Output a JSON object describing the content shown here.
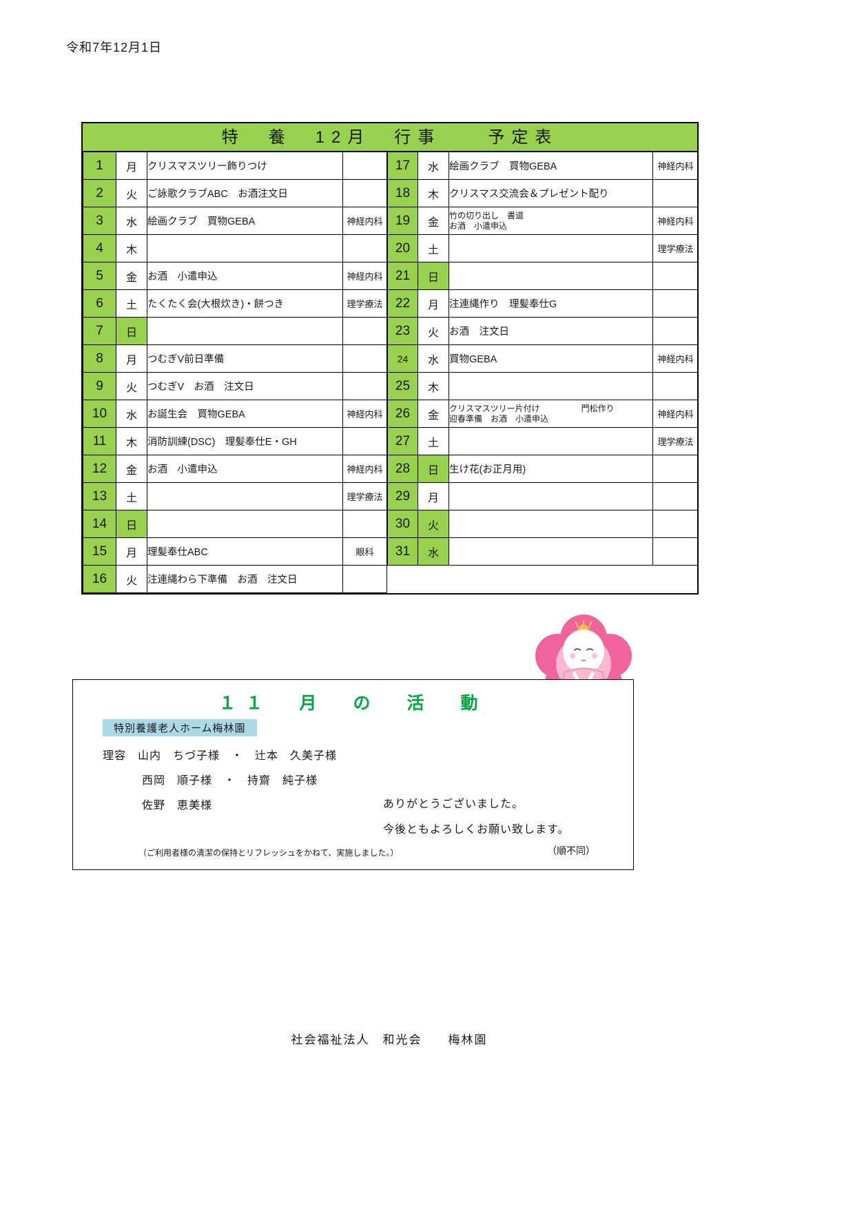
{
  "page": {
    "date_line": "令和7年12月1日",
    "footer": "社会福祉法人　和光会　　梅林園"
  },
  "schedule": {
    "title": "特　養　12月　行事　　予定表",
    "header_bg": "#98d050",
    "note_values": [
      "神経内科",
      "理学療法",
      "眼科"
    ],
    "left_days": [
      {
        "num": "1",
        "day": "月",
        "holiday": false,
        "events": [
          "クリスマスツリー飾りつけ"
        ],
        "note": ""
      },
      {
        "num": "2",
        "day": "火",
        "holiday": false,
        "events": [
          "ご詠歌クラブABC　お酒注文日"
        ],
        "note": ""
      },
      {
        "num": "3",
        "day": "水",
        "holiday": false,
        "events": [
          "絵画クラブ　買物GEBA"
        ],
        "note": "神経内科"
      },
      {
        "num": "4",
        "day": "木",
        "holiday": false,
        "events": [],
        "note": ""
      },
      {
        "num": "5",
        "day": "金",
        "holiday": false,
        "events": [
          "お酒　小遣申込"
        ],
        "note": "神経内科"
      },
      {
        "num": "6",
        "day": "土",
        "holiday": false,
        "events": [
          "たくたく会(大根炊き)・餅つき"
        ],
        "note": "理学療法"
      },
      {
        "num": "7",
        "day": "日",
        "holiday": true,
        "events": [],
        "note": ""
      },
      {
        "num": "8",
        "day": "月",
        "holiday": false,
        "events": [
          "つむぎV前日準備"
        ],
        "note": ""
      },
      {
        "num": "9",
        "day": "火",
        "holiday": false,
        "events": [
          "つむぎV　お酒　注文日"
        ],
        "note": ""
      },
      {
        "num": "10",
        "day": "水",
        "holiday": false,
        "events": [
          "お誕生会　買物GEBA"
        ],
        "note": "神経内科"
      },
      {
        "num": "11",
        "day": "木",
        "holiday": false,
        "events": [
          "消防訓練(DSC)　理髪奉仕E・GH"
        ],
        "note": ""
      },
      {
        "num": "12",
        "day": "金",
        "holiday": false,
        "events": [
          "お酒　小遣申込"
        ],
        "note": "神経内科"
      },
      {
        "num": "13",
        "day": "土",
        "holiday": false,
        "events": [],
        "note": "理学療法"
      },
      {
        "num": "14",
        "day": "日",
        "holiday": true,
        "events": [],
        "note": ""
      },
      {
        "num": "15",
        "day": "月",
        "holiday": false,
        "events": [
          "理髪奉仕ABC"
        ],
        "note": "眼科"
      },
      {
        "num": "16",
        "day": "火",
        "holiday": false,
        "events": [
          "注連縄わら下準備　お酒　注文日"
        ],
        "note": ""
      }
    ],
    "right_days": [
      {
        "num": "17",
        "day": "水",
        "holiday": false,
        "events": [
          "絵画クラブ　買物GEBA"
        ],
        "note": "神経内科"
      },
      {
        "num": "18",
        "day": "木",
        "holiday": false,
        "events": [
          "クリスマス交流会＆プレゼント配り"
        ],
        "note": ""
      },
      {
        "num": "19",
        "day": "金",
        "holiday": false,
        "events": [
          "竹の切り出し　書道",
          "お酒　小遣申込"
        ],
        "note": "神経内科"
      },
      {
        "num": "20",
        "day": "土",
        "holiday": false,
        "events": [],
        "note": "理学療法"
      },
      {
        "num": "21",
        "day": "日",
        "holiday": true,
        "events": [],
        "note": ""
      },
      {
        "num": "22",
        "day": "月",
        "holiday": false,
        "events": [
          "注連縄作り　理髪奉仕G"
        ],
        "note": ""
      },
      {
        "num": "23",
        "day": "火",
        "holiday": false,
        "events": [
          "お酒　注文日"
        ],
        "note": ""
      },
      {
        "num": "24",
        "day": "水",
        "holiday": false,
        "num_small": true,
        "events": [
          "買物GEBA"
        ],
        "note": "神経内科"
      },
      {
        "num": "25",
        "day": "木",
        "holiday": false,
        "events": [],
        "note": ""
      },
      {
        "num": "26",
        "day": "金",
        "holiday": false,
        "events": [
          "クリスマスツリー片付け　　　　　門松作り",
          "迎春準備　お酒　小遣申込"
        ],
        "note": "神経内科"
      },
      {
        "num": "27",
        "day": "土",
        "holiday": false,
        "events": [],
        "note": "理学療法"
      },
      {
        "num": "28",
        "day": "日",
        "holiday": true,
        "events": [
          "生け花(お正月用)"
        ],
        "note": ""
      },
      {
        "num": "29",
        "day": "月",
        "holiday": false,
        "events": [],
        "note": ""
      },
      {
        "num": "30",
        "day": "火",
        "holiday": true,
        "events": [],
        "note": ""
      },
      {
        "num": "31",
        "day": "水",
        "holiday": true,
        "events": [],
        "note": ""
      }
    ]
  },
  "activity": {
    "title": "１１　月　の　活　動",
    "title_color": "#00a541",
    "facility_label": "特別養護老人ホーム梅林園",
    "label_bg": "#abd9e6",
    "lines": {
      "line1": "理容　山内　ちづ子様　・　辻本　久美子様",
      "line2": "西岡　順子様　・　持齋　純子様",
      "line3": "佐野　恵美様",
      "thanks1": "ありがとうございました。",
      "thanks2": "今後ともよろしくお願い致します。",
      "note": "（ご利用者様の清潔の保持とリフレッシュをかねて、実施しました。）",
      "order_note": "（順不同）"
    }
  },
  "doll": {
    "name": "kimono-doll-with-plum-blossom",
    "flower_color": "#ef649a",
    "flower_light": "#f9b8cf",
    "kimono_color": "#f6b9d0",
    "kimono_dark": "#ec8fb4",
    "topknot_color": "#f0c04a"
  }
}
